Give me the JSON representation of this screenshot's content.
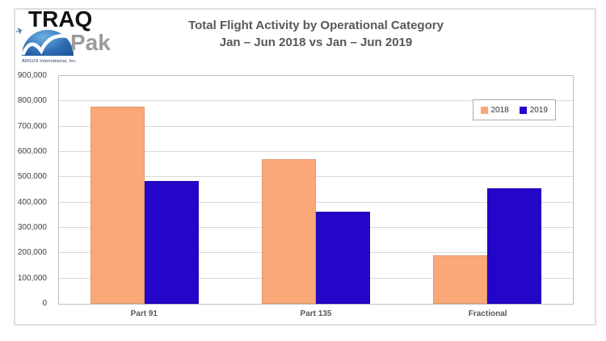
{
  "logo": {
    "brand_top": "TRAQ",
    "brand_bottom": "Pak",
    "company": "ARGUS International, Inc.",
    "airplane_icon": "✈"
  },
  "chart_data": {
    "type": "bar",
    "title": "Total Flight Activity by Operational Category",
    "subtitle": "Jan – Jun 2018 vs Jan – Jun 2019",
    "categories": [
      "Part 91",
      "Part 135",
      "Fractional"
    ],
    "series": [
      {
        "name": "2018",
        "color": "#FAA878",
        "values": [
          780000,
          570000,
          190000
        ]
      },
      {
        "name": "2019",
        "color": "#2306C8",
        "values": [
          485000,
          365000,
          455000
        ]
      }
    ],
    "xlabel": "",
    "ylabel": "",
    "ylim": [
      0,
      900000
    ],
    "ytick_step": 100000,
    "ytick_labels": [
      "0",
      "100,000",
      "200,000",
      "300,000",
      "400,000",
      "500,000",
      "600,000",
      "700,000",
      "800,000",
      "900,000"
    ],
    "grid": true,
    "legend_position": "inside-top-right"
  },
  "colors": {
    "title_text": "#595959",
    "axis_text": "#3F3F3F",
    "gridline": "#D9D9D9",
    "plot_border": "#C0C0C0",
    "frame_border": "#DEDEDE"
  }
}
